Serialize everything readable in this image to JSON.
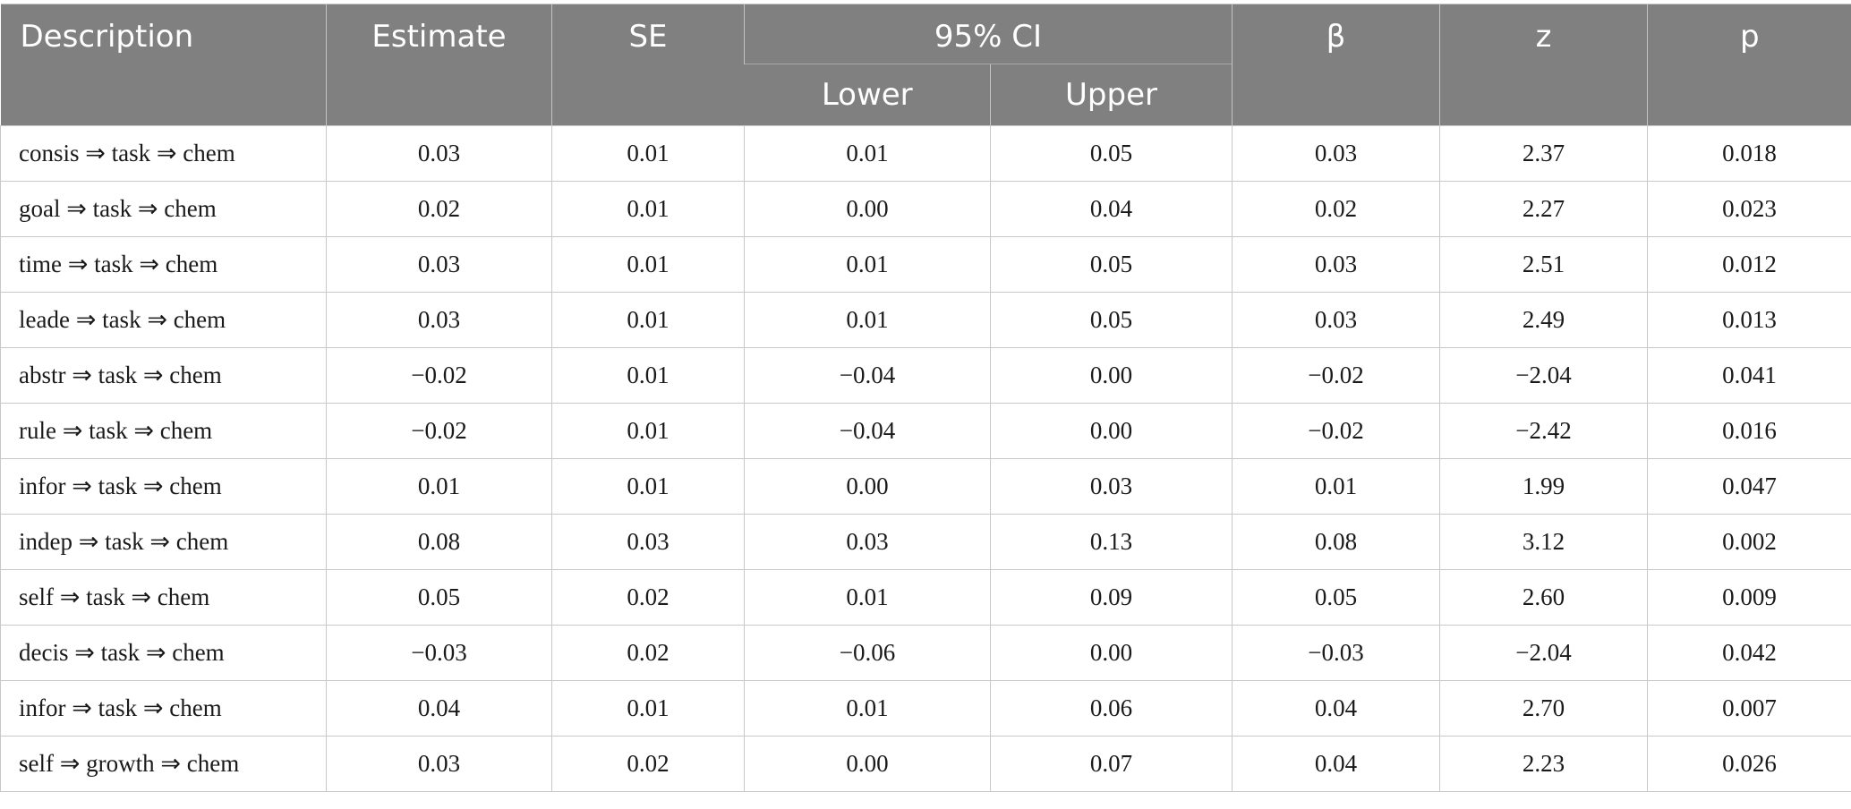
{
  "table": {
    "headers": {
      "description": "Description",
      "estimate": "Estimate",
      "se": "SE",
      "ci": "95% CI",
      "lower": "Lower",
      "upper": "Upper",
      "beta": "β",
      "z": "z",
      "p": "p"
    },
    "rows": [
      {
        "description": "consis ⇒ task ⇒ chem",
        "estimate": "0.03",
        "se": "0.01",
        "lower": "0.01",
        "upper": "0.05",
        "beta": "0.03",
        "z": "2.37",
        "p": "0.018"
      },
      {
        "description": "goal ⇒ task ⇒ chem",
        "estimate": "0.02",
        "se": "0.01",
        "lower": "0.00",
        "upper": "0.04",
        "beta": "0.02",
        "z": "2.27",
        "p": "0.023"
      },
      {
        "description": "time ⇒ task ⇒ chem",
        "estimate": "0.03",
        "se": "0.01",
        "lower": "0.01",
        "upper": "0.05",
        "beta": "0.03",
        "z": "2.51",
        "p": "0.012"
      },
      {
        "description": "leade ⇒ task ⇒ chem",
        "estimate": "0.03",
        "se": "0.01",
        "lower": "0.01",
        "upper": "0.05",
        "beta": "0.03",
        "z": "2.49",
        "p": "0.013"
      },
      {
        "description": "abstr ⇒ task ⇒ chem",
        "estimate": "−0.02",
        "se": "0.01",
        "lower": "−0.04",
        "upper": "0.00",
        "beta": "−0.02",
        "z": "−2.04",
        "p": "0.041"
      },
      {
        "description": "rule ⇒ task ⇒ chem",
        "estimate": "−0.02",
        "se": "0.01",
        "lower": "−0.04",
        "upper": "0.00",
        "beta": "−0.02",
        "z": "−2.42",
        "p": "0.016"
      },
      {
        "description": "infor ⇒ task ⇒ chem",
        "estimate": "0.01",
        "se": "0.01",
        "lower": "0.00",
        "upper": "0.03",
        "beta": "0.01",
        "z": "1.99",
        "p": "0.047"
      },
      {
        "description": "indep ⇒ task ⇒ chem",
        "estimate": "0.08",
        "se": "0.03",
        "lower": "0.03",
        "upper": "0.13",
        "beta": "0.08",
        "z": "3.12",
        "p": "0.002"
      },
      {
        "description": "self ⇒ task ⇒ chem",
        "estimate": "0.05",
        "se": "0.02",
        "lower": "0.01",
        "upper": "0.09",
        "beta": "0.05",
        "z": "2.60",
        "p": "0.009"
      },
      {
        "description": "decis ⇒ task ⇒ chem",
        "estimate": "−0.03",
        "se": "0.02",
        "lower": "−0.06",
        "upper": "0.00",
        "beta": "−0.03",
        "z": "−2.04",
        "p": "0.042"
      },
      {
        "description": "infor ⇒ task ⇒ chem",
        "estimate": "0.04",
        "se": "0.01",
        "lower": "0.01",
        "upper": "0.06",
        "beta": "0.04",
        "z": "2.70",
        "p": "0.007"
      },
      {
        "description": "self ⇒ growth ⇒ chem",
        "estimate": "0.03",
        "se": "0.02",
        "lower": "0.00",
        "upper": "0.07",
        "beta": "0.04",
        "z": "2.23",
        "p": "0.026"
      }
    ]
  },
  "colors": {
    "header_background": "#808080",
    "header_text": "#ffffff",
    "grid_line": "#c8c8c8"
  }
}
